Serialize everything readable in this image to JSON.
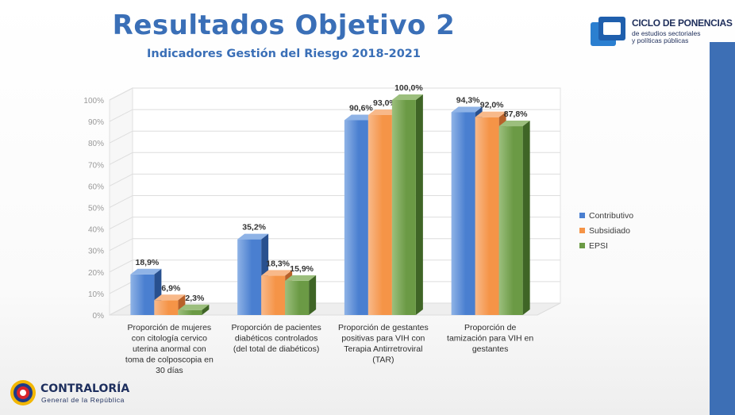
{
  "header": {
    "title": "Resultados Objetivo 2",
    "subtitle": "Indicadores Gestión del Riesgo 2018-2021"
  },
  "logo_ciclo": {
    "title": "CICLO DE PONENCIAS",
    "subtitle_line1": "de estudios sectoriales",
    "subtitle_line2": "y políticas públicas"
  },
  "logo_contraloria": {
    "name": "CONTRALORÍA",
    "subtitle": "General de la República"
  },
  "colors": {
    "contributivo": "#4a7fd0",
    "subsidiado": "#f59447",
    "epsi": "#6b9a45",
    "accent": "#3a6fb7",
    "sidebar": "#3d6fb5"
  },
  "chart_data": {
    "type": "bar",
    "categories": [
      [
        "Proporción de mujeres",
        "con citología cervico",
        "uterina anormal con",
        "toma de colposcopia en",
        "30 días"
      ],
      [
        "Proporción de pacientes",
        "diabéticos controlados",
        "(del total de diabéticos)"
      ],
      [
        "Proporción de gestantes",
        "positivas para VIH con",
        "Terapia Antirretroviral",
        "(TAR)"
      ],
      [
        "Proporción de",
        "tamización para VIH en",
        "gestantes"
      ]
    ],
    "series": [
      {
        "name": "Contributivo",
        "values": [
          18.9,
          35.2,
          90.6,
          94.3
        ],
        "labels": [
          "18,9%",
          "35,2%",
          "90,6%",
          "94,3%"
        ]
      },
      {
        "name": "Subsidiado",
        "values": [
          6.9,
          18.3,
          93.0,
          92.0
        ],
        "labels": [
          "6,9%",
          "18,3%",
          "93,0%",
          "92,0%"
        ]
      },
      {
        "name": "EPSI",
        "values": [
          2.3,
          15.9,
          100.0,
          87.8
        ],
        "labels": [
          "2,3%",
          "15,9%",
          "100,0%",
          "87,8%"
        ]
      }
    ],
    "y_ticks": [
      "0%",
      "10%",
      "20%",
      "30%",
      "40%",
      "50%",
      "60%",
      "70%",
      "80%",
      "90%",
      "100%"
    ],
    "ylim": [
      0,
      100
    ],
    "grid": true,
    "legend_position": "right",
    "style": "3d-bar"
  }
}
